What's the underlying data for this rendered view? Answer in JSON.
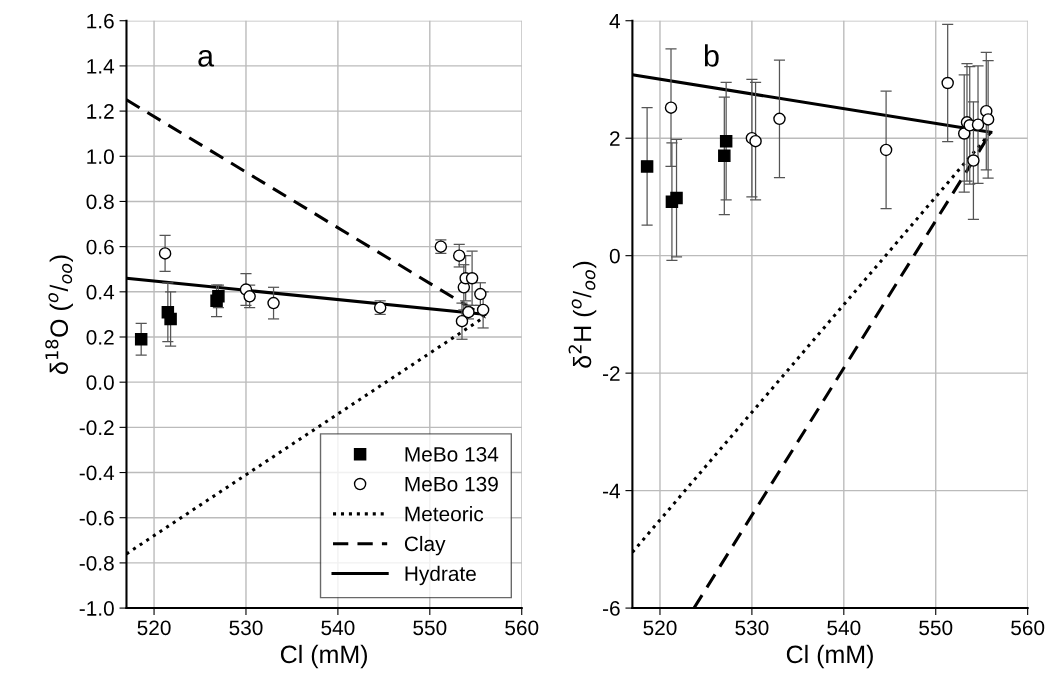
{
  "chart_data": [
    {
      "type": "scatter",
      "annotations": [
        "a"
      ],
      "xlabel": "Cl (mM)",
      "ylabel": "δ$^{18}$O ($^{o}$/$_{oo}$)",
      "xlim": [
        517,
        560
      ],
      "xticks": [
        520,
        530,
        540,
        550,
        560
      ],
      "ylim": [
        -1.0,
        1.6
      ],
      "yticks": [
        {
          "value": -1.0,
          "label": "-1.0"
        },
        {
          "value": -0.8,
          "label": "-0.8"
        },
        {
          "value": -0.6,
          "label": "-0.6"
        },
        {
          "value": -0.4,
          "label": "-0.4"
        },
        {
          "value": -0.2,
          "label": "-0.2"
        },
        {
          "value": 0.0,
          "label": "0.0"
        },
        {
          "value": 0.2,
          "label": "0.2"
        },
        {
          "value": 0.4,
          "label": "0.4"
        },
        {
          "value": 0.6,
          "label": "0.6"
        },
        {
          "value": 0.8,
          "label": "0.8"
        },
        {
          "value": 1.0,
          "label": "1.0"
        },
        {
          "value": 1.2,
          "label": "1.2"
        },
        {
          "value": 1.4,
          "label": "1.4"
        },
        {
          "value": 1.6,
          "label": "1.6"
        }
      ],
      "grid": true,
      "legend": "bottom right",
      "series": [
        {
          "name": "MeBo 134",
          "marker": "square",
          "color": "#000000",
          "x": [
            518.6,
            521.5,
            521.8,
            526.8,
            527.0
          ],
          "values": [
            0.19,
            0.31,
            0.28,
            0.36,
            0.38
          ],
          "errors": [
            0.07,
            0.13,
            0.12,
            0.07,
            0.05
          ]
        },
        {
          "name": "MeBo 139",
          "marker": "circle",
          "color": "#000000",
          "x": [
            521.2,
            530.0,
            530.4,
            533.0,
            544.6,
            551.2,
            553.2,
            553.5,
            553.7,
            553.9,
            554.2,
            554.6,
            555.5,
            555.8
          ],
          "values": [
            0.57,
            0.41,
            0.38,
            0.35,
            0.33,
            0.6,
            0.56,
            0.27,
            0.42,
            0.46,
            0.31,
            0.46,
            0.39,
            0.32
          ],
          "errors": [
            0.08,
            0.07,
            0.05,
            0.07,
            0.03,
            0.03,
            0.05,
            0.08,
            0.1,
            0.1,
            0.03,
            0.12,
            0.05,
            0.08
          ]
        },
        {
          "name": "Meteoric",
          "type": "line",
          "line_style": "dotted",
          "color": "#000000",
          "x": [
            517,
            556
          ],
          "values": [
            -0.76,
            0.29
          ]
        },
        {
          "name": "Clay",
          "type": "line",
          "line_style": "dashed",
          "color": "#000000",
          "x": [
            517,
            556
          ],
          "values": [
            1.25,
            0.29
          ]
        },
        {
          "name": "Hydrate",
          "type": "line",
          "line_style": "solid",
          "color": "#000000",
          "x": [
            517,
            556
          ],
          "values": [
            0.46,
            0.3
          ]
        }
      ]
    },
    {
      "type": "scatter",
      "annotations": [
        "b"
      ],
      "xlabel": "Cl (mM)",
      "ylabel": "δ$^{2}$H ($^{o}$/$_{oo}$)",
      "xlim": [
        517,
        560
      ],
      "xticks": [
        520,
        530,
        540,
        550,
        560
      ],
      "ylim": [
        -6,
        4
      ],
      "yticks": [
        -6,
        -4,
        -2,
        0,
        2,
        4
      ],
      "grid": true,
      "series": [
        {
          "marker": "square",
          "color": "#000000",
          "x": [
            518.6,
            521.3,
            521.8,
            527.0,
            527.2
          ],
          "values": [
            1.52,
            0.92,
            0.98,
            1.7,
            1.95
          ],
          "errors": [
            1.0,
            1.0,
            1.0,
            1.0,
            1.0
          ]
        },
        {
          "marker": "circle",
          "color": "#000000",
          "x": [
            521.2,
            530.0,
            530.4,
            533.0,
            544.6,
            551.3,
            553.1,
            553.4,
            553.7,
            554.1,
            554.6,
            555.5,
            555.7
          ],
          "values": [
            2.52,
            2.0,
            1.95,
            2.33,
            1.8,
            2.94,
            2.08,
            2.27,
            2.22,
            1.62,
            2.23,
            2.46,
            2.32
          ],
          "errors": [
            1.0,
            1.0,
            1.0,
            1.0,
            1.0,
            1.0,
            1.0,
            1.0,
            1.0,
            1.0,
            1.0,
            1.0,
            1.0
          ]
        },
        {
          "type": "line",
          "line_style": "dotted",
          "color": "#000000",
          "x": [
            517,
            556
          ],
          "values": [
            -5.05,
            2.1
          ]
        },
        {
          "type": "line",
          "line_style": "dashed",
          "color": "#000000",
          "x": [
            523.7,
            556
          ],
          "values": [
            -6,
            2.1
          ]
        },
        {
          "type": "line",
          "line_style": "solid",
          "color": "#000000",
          "x": [
            517,
            556
          ],
          "values": [
            3.08,
            2.1
          ]
        }
      ]
    }
  ]
}
